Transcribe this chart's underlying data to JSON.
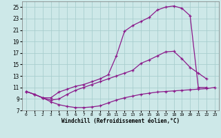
{
  "line1_x": [
    0,
    1,
    2,
    3,
    4,
    5,
    6,
    7,
    8,
    9,
    10,
    11,
    12,
    13,
    14,
    15,
    16,
    17,
    18,
    19,
    20,
    21,
    22
  ],
  "line1_y": [
    10.3,
    9.8,
    9.2,
    9.2,
    10.2,
    10.7,
    11.2,
    11.5,
    12.0,
    12.5,
    13.2,
    16.5,
    20.8,
    21.8,
    22.5,
    23.2,
    24.5,
    25.0,
    25.2,
    24.8,
    23.5,
    11.0,
    11.0
  ],
  "line2_x": [
    0,
    1,
    2,
    3,
    4,
    5,
    6,
    7,
    8,
    9,
    10,
    11,
    12,
    13,
    14,
    15,
    16,
    17,
    18,
    19,
    20,
    21,
    22
  ],
  "line2_y": [
    10.3,
    9.8,
    9.2,
    8.8,
    9.0,
    9.8,
    10.5,
    11.0,
    11.5,
    12.0,
    12.5,
    13.0,
    13.5,
    14.0,
    15.2,
    15.8,
    16.5,
    17.2,
    17.3,
    16.0,
    14.5,
    13.5,
    12.5
  ],
  "line3_x": [
    0,
    1,
    2,
    3,
    4,
    5,
    6,
    7,
    8,
    9,
    10,
    11,
    12,
    13,
    14,
    15,
    16,
    17,
    18,
    19,
    20,
    21,
    22,
    23
  ],
  "line3_y": [
    10.3,
    9.8,
    9.2,
    8.5,
    8.0,
    7.7,
    7.5,
    7.5,
    7.6,
    7.8,
    8.3,
    8.8,
    9.2,
    9.5,
    9.8,
    10.0,
    10.2,
    10.3,
    10.4,
    10.5,
    10.6,
    10.7,
    10.8,
    11.0
  ],
  "line_color": "#8b1a8b",
  "bg_color": "#cde8e8",
  "grid_color": "#a8cece",
  "xlabel": "Windchill (Refroidissement éolien,°C)",
  "xlim": [
    -0.5,
    23.5
  ],
  "ylim": [
    7,
    26
  ],
  "yticks": [
    7,
    9,
    11,
    13,
    15,
    17,
    19,
    21,
    23,
    25
  ],
  "xticks": [
    0,
    1,
    2,
    3,
    4,
    5,
    6,
    7,
    8,
    9,
    10,
    11,
    12,
    13,
    14,
    15,
    16,
    17,
    18,
    19,
    20,
    21,
    22,
    23
  ],
  "marker": "+",
  "markersize": 3.5,
  "linewidth": 0.9
}
